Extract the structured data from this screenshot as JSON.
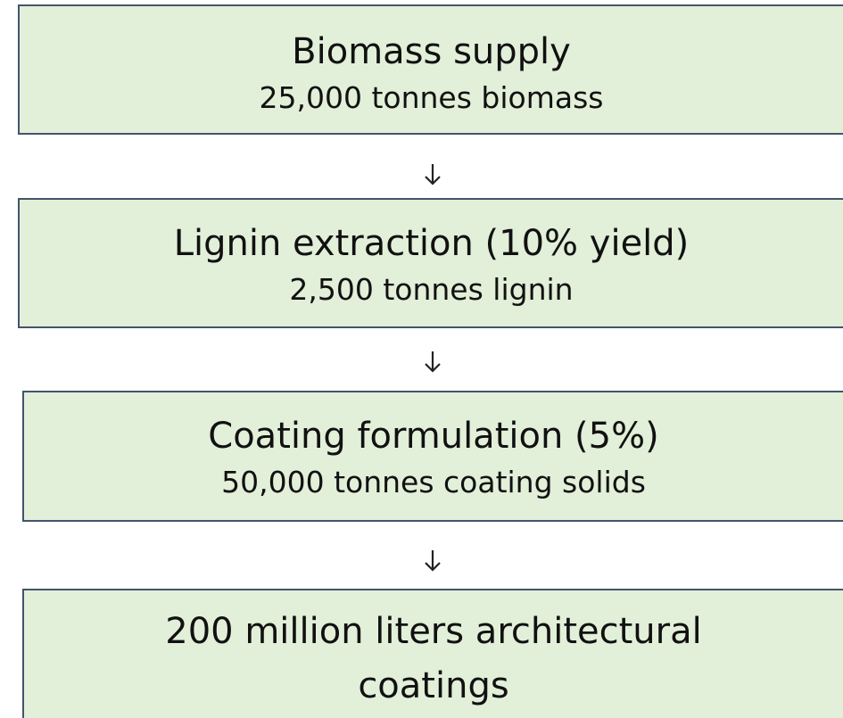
{
  "nodes": [
    {
      "label": "Biomass supply",
      "detail": "25,000 tonnes biomass"
    },
    {
      "label": "Lignin extraction (10% yield)",
      "detail": "2,500 tonnes lignin"
    },
    {
      "label": "Coating formulation (5%)",
      "detail": "50,000 tonnes coating solids"
    },
    {
      "label": "200 million liters architectural coatings"
    }
  ]
}
